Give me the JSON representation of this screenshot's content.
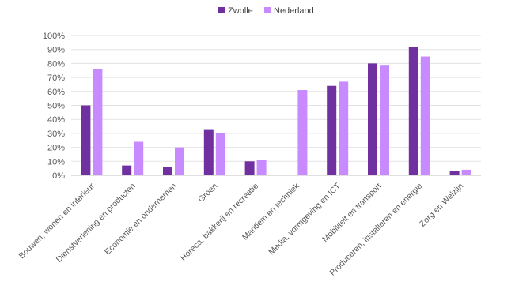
{
  "chart_data": {
    "type": "bar",
    "title": "",
    "xlabel": "",
    "ylabel": "",
    "ylim": [
      0,
      100
    ],
    "y_ticks": [
      "0%",
      "10%",
      "20%",
      "30%",
      "40%",
      "50%",
      "60%",
      "70%",
      "80%",
      "90%",
      "100%"
    ],
    "grid": true,
    "legend_position": "top",
    "categories": [
      "Bouwen, wonen en interieur",
      "Dienstverlening en producten",
      "Economie en ondernemen",
      "Groen",
      "Horeca, bakkerij en recreatie",
      "Maritiem en techniek",
      "Media, vormgeving en ICT",
      "Mobiliteit en transport",
      "Produceren, installeren en energie",
      "Zorg en Welzijn"
    ],
    "series": [
      {
        "name": "Zwolle",
        "color": "#7030a0",
        "values": [
          50,
          7,
          6,
          33,
          10,
          0,
          64,
          80,
          92,
          3
        ]
      },
      {
        "name": "Nederland",
        "color": "#c78bff",
        "values": [
          76,
          24,
          20,
          30,
          11,
          61,
          67,
          79,
          85,
          4
        ]
      }
    ]
  }
}
